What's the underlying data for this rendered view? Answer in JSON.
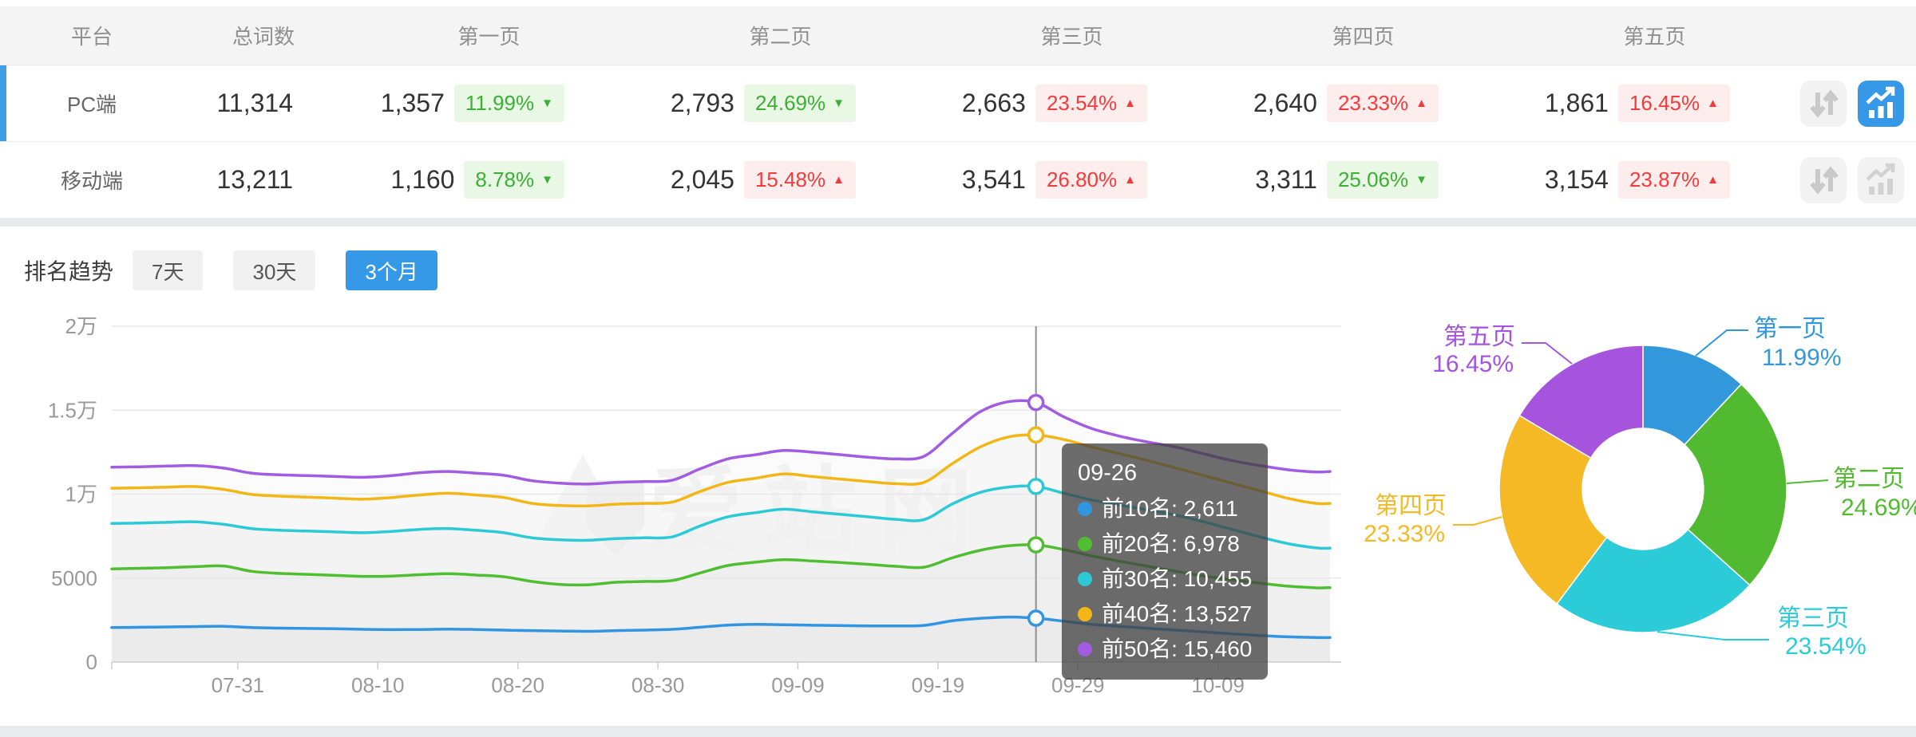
{
  "colors": {
    "accent_blue": "#3599e8",
    "positive_green": "#3cb035",
    "negative_red": "#f23c3c",
    "selection_bar": "#3e9ee8",
    "header_bg": "#f4f4f4",
    "divider": "#e9eaec"
  },
  "watermark": "爱站网",
  "table": {
    "columns": [
      "平台",
      "总词数",
      "第一页",
      "第二页",
      "第三页",
      "第四页",
      "第五页"
    ],
    "rows": [
      {
        "platform": "PC端",
        "total": "11,314",
        "selected": true,
        "pages": [
          {
            "value": "1,357",
            "pct": "11.99%",
            "trend": "down",
            "tone": "green"
          },
          {
            "value": "2,793",
            "pct": "24.69%",
            "trend": "down",
            "tone": "green"
          },
          {
            "value": "2,663",
            "pct": "23.54%",
            "trend": "up",
            "tone": "red"
          },
          {
            "value": "2,640",
            "pct": "23.33%",
            "trend": "up",
            "tone": "red"
          },
          {
            "value": "1,861",
            "pct": "16.45%",
            "trend": "up",
            "tone": "red"
          }
        ]
      },
      {
        "platform": "移动端",
        "total": "13,211",
        "selected": false,
        "pages": [
          {
            "value": "1,160",
            "pct": "8.78%",
            "trend": "down",
            "tone": "green"
          },
          {
            "value": "2,045",
            "pct": "15.48%",
            "trend": "up",
            "tone": "red"
          },
          {
            "value": "3,541",
            "pct": "26.80%",
            "trend": "up",
            "tone": "red"
          },
          {
            "value": "3,311",
            "pct": "25.06%",
            "trend": "down",
            "tone": "green"
          },
          {
            "value": "3,154",
            "pct": "23.87%",
            "trend": "up",
            "tone": "red"
          }
        ]
      }
    ]
  },
  "trend": {
    "title": "排名趋势",
    "ranges": [
      {
        "label": "7天",
        "active": false
      },
      {
        "label": "30天",
        "active": false
      },
      {
        "label": "3个月",
        "active": true
      }
    ]
  },
  "chart_data": [
    {
      "type": "line",
      "title": "排名趋势 3个月",
      "ylabel": "",
      "xlabel": "",
      "ylim": [
        0,
        20000
      ],
      "grid": true,
      "y_tick_labels": [
        "0",
        "5000",
        "1万",
        "1.5万",
        "2万"
      ],
      "y_tick_values": [
        0,
        5000,
        10000,
        15000,
        20000
      ],
      "x_tick_labels": [
        "07-31",
        "08-10",
        "08-20",
        "08-30",
        "09-09",
        "09-19",
        "09-29",
        "10-09"
      ],
      "x_tick_days": [
        9,
        19,
        29,
        39,
        49,
        59,
        69,
        79
      ],
      "day_domain": [
        0,
        87
      ],
      "days": [
        0,
        2,
        4,
        6,
        8,
        10,
        12,
        14,
        16,
        18,
        20,
        22,
        24,
        26,
        28,
        30,
        32,
        34,
        36,
        38,
        40,
        42,
        44,
        46,
        48,
        50,
        52,
        54,
        56,
        58,
        60,
        62,
        64,
        66,
        68,
        70,
        72,
        74,
        76,
        78,
        80,
        82,
        84,
        86,
        87
      ],
      "series": [
        {
          "name": "前10名",
          "color": "#3295e2",
          "values": [
            2050,
            2070,
            2090,
            2110,
            2130,
            2050,
            2020,
            2000,
            1980,
            1950,
            1930,
            1940,
            1960,
            1940,
            1900,
            1870,
            1850,
            1830,
            1870,
            1900,
            1950,
            2070,
            2200,
            2240,
            2220,
            2190,
            2170,
            2150,
            2150,
            2180,
            2450,
            2600,
            2680,
            2611,
            2430,
            2240,
            2120,
            2010,
            1900,
            1790,
            1680,
            1580,
            1500,
            1460,
            1460
          ]
        },
        {
          "name": "前20名",
          "color": "#4fbe30",
          "values": [
            5550,
            5580,
            5620,
            5680,
            5720,
            5400,
            5280,
            5220,
            5160,
            5100,
            5120,
            5200,
            5260,
            5180,
            5080,
            4800,
            4620,
            4600,
            4750,
            4800,
            4850,
            5300,
            5750,
            5950,
            6100,
            6020,
            5930,
            5820,
            5700,
            5650,
            6200,
            6650,
            6920,
            6978,
            6700,
            6320,
            6000,
            5700,
            5400,
            5120,
            4900,
            4700,
            4520,
            4420,
            4430
          ]
        },
        {
          "name": "前30名",
          "color": "#2cc9d7",
          "values": [
            8250,
            8280,
            8320,
            8350,
            8200,
            7950,
            7850,
            7800,
            7750,
            7700,
            7780,
            7900,
            7950,
            7850,
            7700,
            7400,
            7280,
            7250,
            7350,
            7400,
            7450,
            8100,
            8650,
            8900,
            9100,
            8950,
            8800,
            8650,
            8500,
            8480,
            9400,
            10100,
            10420,
            10455,
            10050,
            9650,
            9350,
            9050,
            8750,
            8350,
            7900,
            7450,
            7050,
            6800,
            6780
          ]
        },
        {
          "name": "前40名",
          "color": "#f2b616",
          "values": [
            10350,
            10380,
            10420,
            10450,
            10280,
            9980,
            9880,
            9820,
            9760,
            9700,
            9800,
            9950,
            10050,
            9950,
            9800,
            9450,
            9320,
            9300,
            9400,
            9450,
            9520,
            10150,
            10700,
            10950,
            11200,
            11050,
            10900,
            10750,
            10620,
            10700,
            11800,
            12800,
            13400,
            13527,
            13250,
            12800,
            12400,
            12000,
            11550,
            11100,
            10650,
            10200,
            9750,
            9450,
            9450
          ]
        },
        {
          "name": "前50名",
          "color": "#a15ce2",
          "values": [
            11600,
            11630,
            11670,
            11700,
            11550,
            11250,
            11150,
            11100,
            11050,
            11000,
            11100,
            11280,
            11350,
            11250,
            11120,
            10800,
            10650,
            10600,
            10700,
            10750,
            10820,
            11500,
            12100,
            12350,
            12600,
            12500,
            12350,
            12200,
            12100,
            12250,
            13600,
            14900,
            15500,
            15460,
            14600,
            13900,
            13450,
            13100,
            12800,
            12400,
            12000,
            11700,
            11450,
            11320,
            11350
          ]
        }
      ],
      "marker": {
        "date": "09-26",
        "day": 66,
        "rows": [
          {
            "name": "前10名",
            "value": "2,611",
            "color": "#3295e2"
          },
          {
            "name": "前20名",
            "value": "6,978",
            "color": "#4fbe30"
          },
          {
            "name": "前30名",
            "value": "10,455",
            "color": "#2cc9d7"
          },
          {
            "name": "前40名",
            "value": "13,527",
            "color": "#f2b616"
          },
          {
            "name": "前50名",
            "value": "15,460",
            "color": "#a15ce2"
          }
        ]
      }
    },
    {
      "type": "pie",
      "labels": [
        "第一页",
        "第二页",
        "第三页",
        "第四页",
        "第五页"
      ],
      "values": [
        11.99,
        24.69,
        23.54,
        23.33,
        16.45
      ],
      "value_labels": [
        "11.99%",
        "24.69%",
        "23.54%",
        "23.33%",
        "16.45%"
      ],
      "colors": [
        "#3398db",
        "#52ba30",
        "#2bcbd8",
        "#f5b926",
        "#a653dd"
      ],
      "inner_radius_ratio": 0.42,
      "legend_position": "callout-labels"
    }
  ]
}
